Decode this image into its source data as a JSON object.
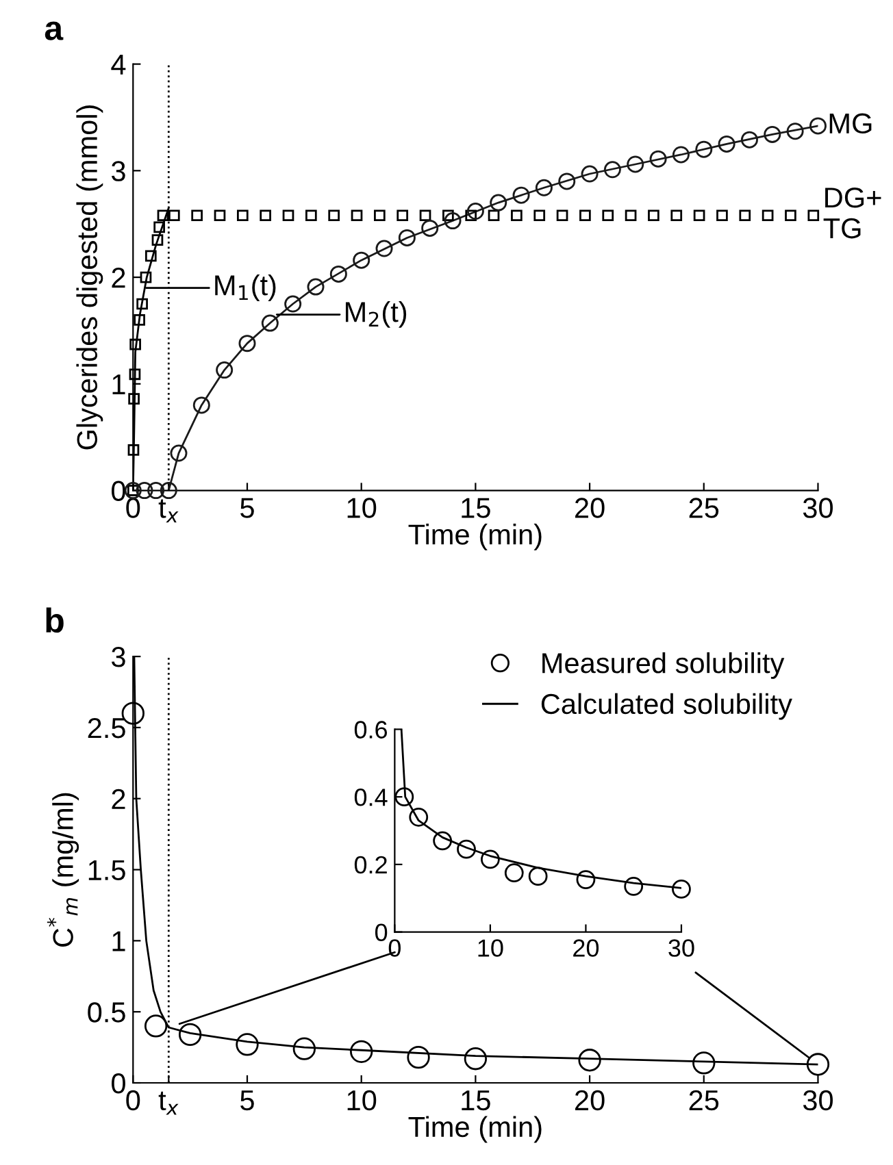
{
  "chart_data": [
    {
      "type": "scatter",
      "title": "a",
      "xlabel": "Time (min)",
      "ylabel": "Glycerides digested (mmol)",
      "xlim": [
        0,
        30
      ],
      "ylim": [
        0,
        4
      ],
      "xticks": [
        0,
        {
          "value": 1.56,
          "label": "t$_{x}$"
        },
        5,
        10,
        15,
        20,
        25,
        30
      ],
      "yticks": [
        0,
        1,
        2,
        3,
        4
      ],
      "grid": false,
      "legend": false,
      "ref_lines": [
        {
          "axis": "x",
          "value": 1.56,
          "label": null,
          "line_style": "dotted",
          "color": "#000000"
        }
      ],
      "annotations": [
        {
          "text": "M$_{1}$(t)",
          "x": 0.58,
          "y": 1.9
        },
        {
          "text": "M$_{2}$(t)",
          "x": 6.3,
          "y": 1.65
        }
      ],
      "series": [
        {
          "marker": "square",
          "name": "DG+\nTG",
          "color": "#000000",
          "x": [
            0,
            0.02,
            0.04,
            0.08,
            0.1,
            0.28,
            0.4,
            0.56,
            0.78,
            1.07,
            1.15,
            1.31,
            1.8,
            2.8,
            3.8,
            4.8,
            5.8,
            6.8,
            7.8,
            8.8,
            9.8,
            10.8,
            11.8,
            12.8,
            13.8,
            14.8,
            15.8,
            16.8,
            17.8,
            18.8,
            19.8,
            20.8,
            21.8,
            22.8,
            23.8,
            24.8,
            25.8,
            26.8,
            27.8,
            28.8,
            29.8
          ],
          "values": [
            0,
            0.38,
            0.86,
            1.09,
            1.37,
            1.6,
            1.75,
            2.0,
            2.2,
            2.35,
            2.47,
            2.58,
            2.58,
            2.58,
            2.58,
            2.58,
            2.58,
            2.58,
            2.58,
            2.58,
            2.58,
            2.58,
            2.58,
            2.58,
            2.58,
            2.58,
            2.58,
            2.58,
            2.58,
            2.58,
            2.58,
            2.58,
            2.58,
            2.58,
            2.58,
            2.58,
            2.58,
            2.58,
            2.58,
            2.58,
            2.58
          ]
        },
        {
          "type": "line",
          "color": "#000000",
          "x": [
            0,
            0.05,
            0.1,
            0.3,
            0.6,
            1.0,
            1.56
          ],
          "values": [
            0,
            0.6,
            1.3,
            1.65,
            2.0,
            2.3,
            2.65
          ]
        },
        {
          "marker": "circle",
          "name": "MG",
          "color": "#1a1a1a",
          "x": [
            0,
            0.5,
            1,
            1.56,
            2,
            3,
            4,
            5,
            6,
            7,
            8,
            9,
            10,
            11,
            12,
            13,
            14,
            15,
            16,
            17,
            18,
            19,
            20,
            21,
            22,
            23,
            24,
            25,
            26,
            27,
            28,
            29,
            30
          ],
          "values": [
            0,
            0,
            0,
            0,
            0.35,
            0.8,
            1.13,
            1.38,
            1.57,
            1.75,
            1.91,
            2.03,
            2.16,
            2.27,
            2.37,
            2.46,
            2.53,
            2.62,
            2.7,
            2.77,
            2.84,
            2.9,
            2.97,
            3.01,
            3.06,
            3.11,
            3.15,
            3.2,
            3.25,
            3.29,
            3.34,
            3.37,
            3.42
          ]
        },
        {
          "type": "line",
          "color": "#1a1a1a",
          "x": [
            1.56,
            2,
            3,
            4,
            5,
            6,
            7,
            8,
            10,
            12,
            14,
            16,
            18,
            20,
            22,
            24,
            26,
            28,
            30
          ],
          "values": [
            0,
            0.35,
            0.8,
            1.13,
            1.38,
            1.57,
            1.75,
            1.91,
            2.16,
            2.37,
            2.53,
            2.7,
            2.84,
            2.97,
            3.06,
            3.15,
            3.25,
            3.34,
            3.42
          ]
        }
      ]
    },
    {
      "type": "scatter",
      "title": "b",
      "xlabel": "Time (min)",
      "ylabel": "C$^{*}$$_{m}$ (mg/ml)",
      "xlim": [
        0,
        30
      ],
      "ylim": [
        0,
        3
      ],
      "xticks": [
        0,
        {
          "value": 1.56,
          "label": "t$_{x}$"
        },
        5,
        10,
        15,
        20,
        25,
        30
      ],
      "yticks": [
        0,
        0.5,
        1,
        1.5,
        2,
        2.5,
        3
      ],
      "grid": false,
      "legend": "top right",
      "ref_lines": [
        {
          "axis": "x",
          "value": 1.56,
          "label": null,
          "line_style": "dotted",
          "color": "#000000"
        }
      ],
      "series": [
        {
          "marker": "circle",
          "name": "Measured solubility",
          "color": "#000000",
          "x": [
            0,
            1,
            2.5,
            5,
            7.5,
            10,
            12.5,
            15,
            20,
            25,
            30
          ],
          "values": [
            2.6,
            0.4,
            0.34,
            0.27,
            0.24,
            0.22,
            0.18,
            0.17,
            0.16,
            0.14,
            0.13
          ]
        },
        {
          "type": "line",
          "name": "Calculated solubility",
          "color": "#000000",
          "x": [
            0.05,
            0.14,
            0.34,
            0.58,
            0.9,
            1.2,
            1.56,
            2.5,
            5,
            7.5,
            10,
            15,
            20,
            25,
            30
          ],
          "values": [
            3.0,
            2.0,
            1.5,
            1.0,
            0.65,
            0.5,
            0.39,
            0.35,
            0.29,
            0.25,
            0.23,
            0.19,
            0.17,
            0.15,
            0.13
          ]
        }
      ]
    },
    {
      "type": "scatter",
      "xlim": [
        0,
        30
      ],
      "ylim": [
        0,
        0.6
      ],
      "xticks": [
        0,
        10,
        20,
        30
      ],
      "yticks": [
        0,
        0.2,
        0.4,
        0.6
      ],
      "grid": false,
      "legend": false,
      "series": [
        {
          "marker": "circle",
          "color": "#000000",
          "x": [
            1,
            2.5,
            5,
            7.5,
            10,
            12.5,
            15,
            20,
            25,
            30
          ],
          "values": [
            0.4,
            0.34,
            0.27,
            0.245,
            0.215,
            0.175,
            0.165,
            0.155,
            0.135,
            0.127
          ]
        },
        {
          "type": "line",
          "color": "#000000",
          "x": [
            0.7,
            1.1,
            2.5,
            5,
            7.5,
            10,
            15,
            20,
            25,
            30
          ],
          "values": [
            0.6,
            0.4,
            0.33,
            0.28,
            0.25,
            0.225,
            0.19,
            0.165,
            0.145,
            0.13
          ]
        }
      ]
    }
  ]
}
